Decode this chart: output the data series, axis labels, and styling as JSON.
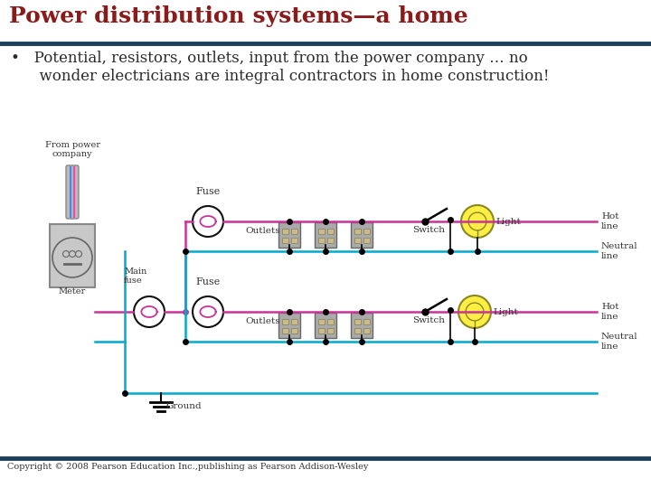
{
  "title": "Power distribution systems—a home",
  "title_color": "#8B1A1A",
  "title_fontsize": 18,
  "header_line_color": "#1C3F5E",
  "bullet_line1": "•   Potential, resistors, outlets, input from the power company … no",
  "bullet_line2": "      wonder electricians are integral contractors in home construction!",
  "bullet_fontsize": 12,
  "bullet_color": "#2B2B2B",
  "copyright_text": "Copyright © 2008 Pearson Education Inc.,publishing as Pearson Addison-Wesley",
  "copyright_fontsize": 7,
  "footer_line_color": "#1C3F5E",
  "bg_color": "#FFFFFF",
  "hot_color": "#CC3399",
  "neutral_color": "#00AACC",
  "wire_color": "#000000",
  "label_color": "#333333",
  "panel_color": "#BBBBBB",
  "outlet_face": "#AAAAAA",
  "outlet_slot": "#CCBB88",
  "switch_color": "#333333",
  "light_face": "#FFEE44",
  "light_edge": "#888800",
  "ground_color": "#00AACC"
}
